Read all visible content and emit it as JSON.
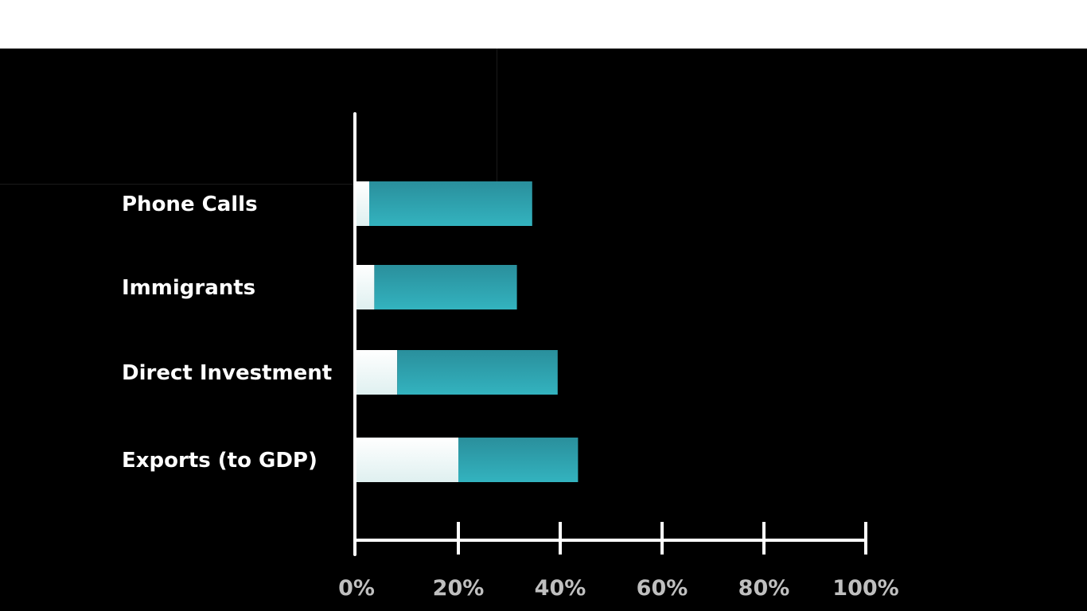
{
  "chart_data": {
    "type": "bar",
    "orientation": "horizontal",
    "stacked": true,
    "categories": [
      "Phone Calls",
      "Immigrants",
      "Direct Investment",
      "Exports (to GDP)"
    ],
    "series": [
      {
        "values": [
          2.5,
          3.5,
          8,
          20
        ],
        "color": "#f4fbfb"
      },
      {
        "values": [
          32,
          28,
          31.5,
          23.5
        ],
        "color": "#2fa8b4"
      }
    ],
    "xlim": [
      0,
      100
    ],
    "xticks": [
      0,
      20,
      40,
      60,
      80,
      100
    ],
    "xtick_labels": [
      "0%",
      "20%",
      "40%",
      "60%",
      "80%",
      "100%"
    ],
    "grid": false
  },
  "colors": {
    "background": "#000000",
    "axis": "#ffffff",
    "segment_light": "#f4fbfb",
    "segment_teal": "#2fa8b4"
  }
}
